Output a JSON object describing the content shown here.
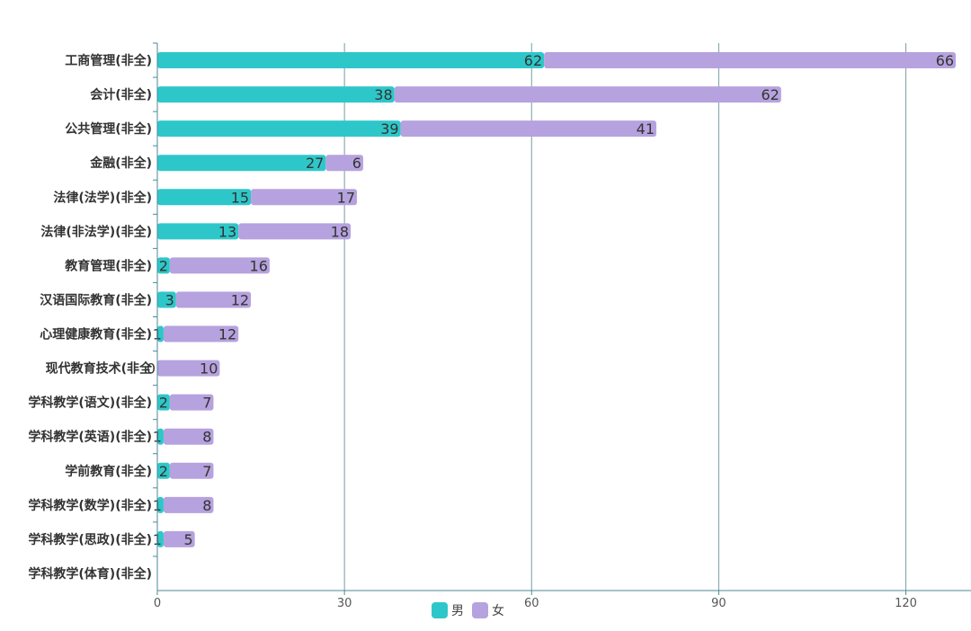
{
  "chart_data": {
    "type": "bar",
    "orientation": "horizontal",
    "stacked": true,
    "categories": [
      "工商管理(非全)",
      "会计(非全)",
      "公共管理(非全)",
      "金融(非全)",
      "法律(法学)(非全)",
      "法律(非法学)(非全)",
      "教育管理(非全)",
      "汉语国际教育(非全)",
      "心理健康教育(非全)",
      "现代教育技术(非全",
      "学科教学(语文)(非全)",
      "学科教学(英语)(非全)",
      "学前教育(非全)",
      "学科教学(数学)(非全)",
      "学科教学(思政)(非全)",
      "学科教学(体育)(非全)"
    ],
    "series": [
      {
        "name": "男",
        "color": "#2ec7c9",
        "values": [
          62,
          38,
          39,
          27,
          15,
          13,
          2,
          3,
          1,
          0,
          2,
          1,
          2,
          1,
          1,
          null
        ],
        "labels": [
          "62",
          "38",
          "39",
          "27",
          "15",
          "13",
          "2",
          "3",
          "1",
          "0",
          "2",
          "1",
          "2",
          "1",
          "1",
          ""
        ]
      },
      {
        "name": "女",
        "color": "#b6a2de",
        "values": [
          66,
          62,
          41,
          6,
          17,
          18,
          16,
          12,
          12,
          10,
          7,
          8,
          7,
          8,
          5,
          null
        ],
        "labels": [
          "66",
          "62",
          "41",
          "6",
          "17",
          "18",
          "16",
          "12",
          "12",
          "10",
          "7",
          "8",
          "7",
          "8",
          "5",
          ""
        ]
      }
    ],
    "x_ticks": [
      "0",
      "30",
      "60",
      "90",
      "120"
    ],
    "xlim": [
      0,
      129
    ],
    "grid": true,
    "legend_position": "bottom-center"
  }
}
